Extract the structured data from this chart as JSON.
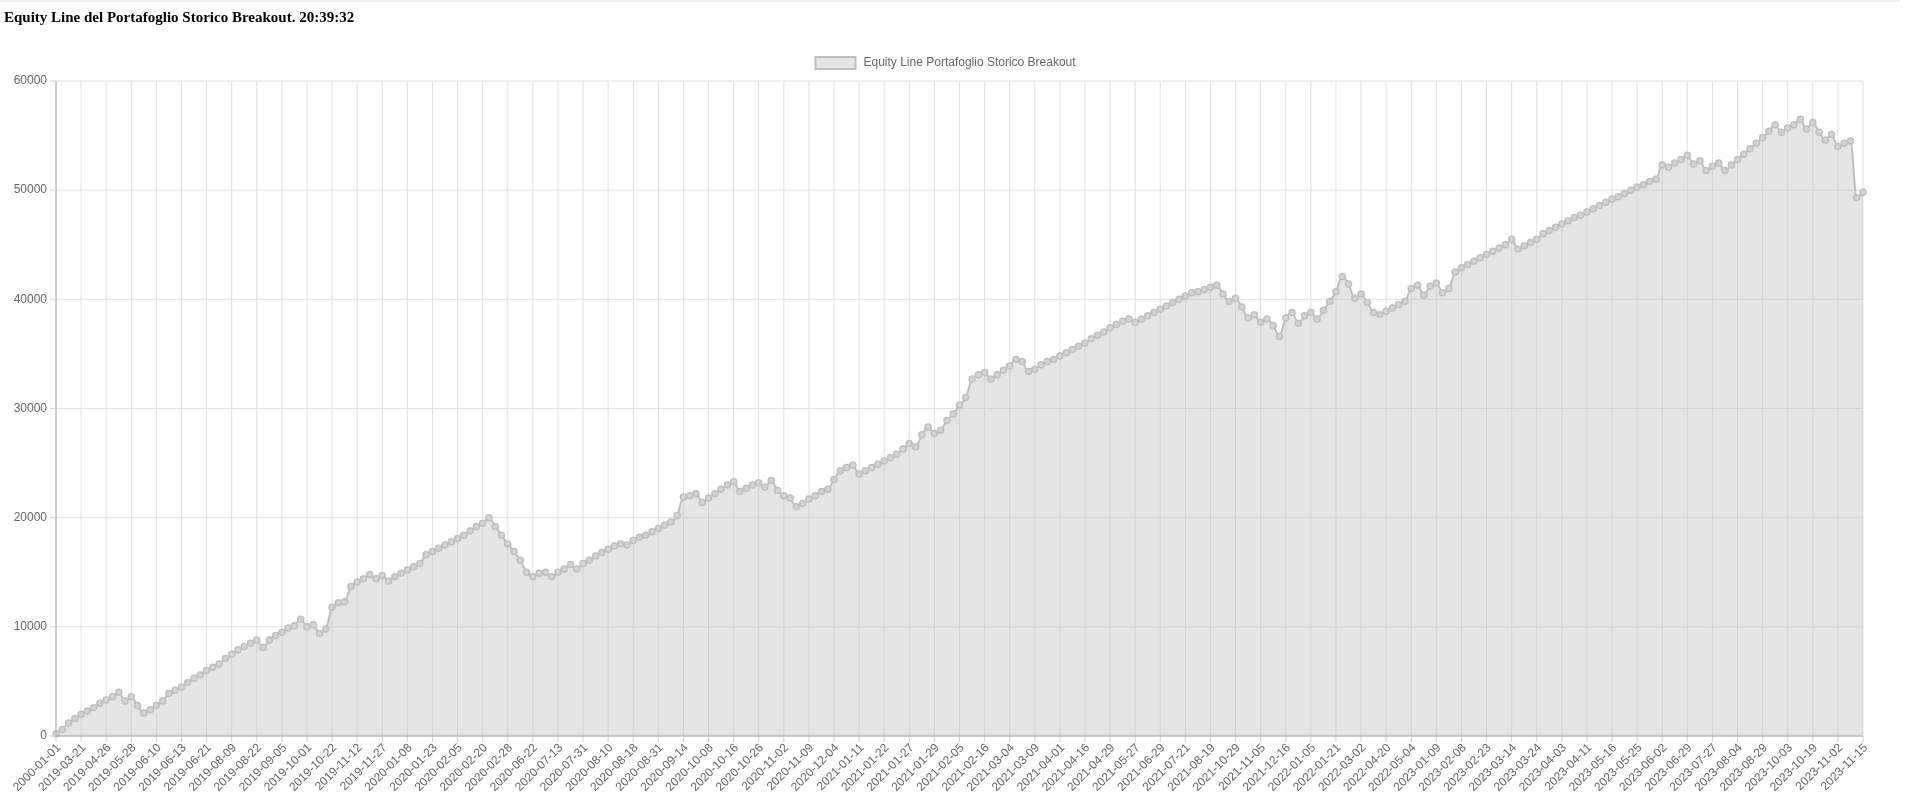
{
  "chart_data": {
    "type": "area",
    "title": "Equity Line del Portafoglio Storico Breakout. 20:39:32",
    "categories": [
      "2000-01-01",
      null,
      null,
      null,
      "2019-03-21",
      null,
      null,
      null,
      "2019-04-26",
      null,
      null,
      null,
      "2019-05-28",
      null,
      null,
      null,
      "2019-06-10",
      null,
      null,
      null,
      "2019-06-13",
      null,
      null,
      null,
      "2019-06-21",
      null,
      null,
      null,
      "2019-08-09",
      null,
      null,
      null,
      "2019-08-22",
      null,
      null,
      null,
      "2019-09-05",
      null,
      null,
      null,
      "2019-10-01",
      null,
      null,
      null,
      "2019-10-22",
      null,
      null,
      null,
      "2019-11-12",
      null,
      null,
      null,
      "2019-11-27",
      null,
      null,
      null,
      "2020-01-08",
      null,
      null,
      null,
      "2020-01-23",
      null,
      null,
      null,
      "2020-02-05",
      null,
      null,
      null,
      "2020-02-20",
      null,
      null,
      null,
      "2020-02-28",
      null,
      null,
      null,
      "2020-06-22",
      null,
      null,
      null,
      "2020-07-13",
      null,
      null,
      null,
      "2020-07-31",
      null,
      null,
      null,
      "2020-08-10",
      null,
      null,
      null,
      "2020-08-18",
      null,
      null,
      null,
      "2020-08-31",
      null,
      null,
      null,
      "2020-09-14",
      null,
      null,
      null,
      "2020-10-08",
      null,
      null,
      null,
      "2020-10-16",
      null,
      null,
      null,
      "2020-10-26",
      null,
      null,
      null,
      "2020-11-02",
      null,
      null,
      null,
      "2020-11-09",
      null,
      null,
      null,
      "2020-12-04",
      null,
      null,
      null,
      "2021-01-11",
      null,
      null,
      null,
      "2021-01-22",
      null,
      null,
      null,
      "2021-01-27",
      null,
      null,
      null,
      "2021-01-29",
      null,
      null,
      null,
      "2021-02-05",
      null,
      null,
      null,
      "2021-02-16",
      null,
      null,
      null,
      "2021-03-04",
      null,
      null,
      null,
      "2021-03-09",
      null,
      null,
      null,
      "2021-04-01",
      null,
      null,
      null,
      "2021-04-16",
      null,
      null,
      null,
      "2021-04-29",
      null,
      null,
      null,
      "2021-05-27",
      null,
      null,
      null,
      "2021-06-29",
      null,
      null,
      null,
      "2021-07-21",
      null,
      null,
      null,
      "2021-08-19",
      null,
      null,
      null,
      "2021-10-29",
      null,
      null,
      null,
      "2021-11-05",
      null,
      null,
      null,
      "2021-12-16",
      null,
      null,
      null,
      "2022-01-05",
      null,
      null,
      null,
      "2022-01-21",
      null,
      null,
      null,
      "2022-03-02",
      null,
      null,
      null,
      "2022-04-20",
      null,
      null,
      null,
      "2022-05-04",
      null,
      null,
      null,
      "2023-01-09",
      null,
      null,
      null,
      "2023-02-08",
      null,
      null,
      null,
      "2023-02-23",
      null,
      null,
      null,
      "2023-03-14",
      null,
      null,
      null,
      "2023-03-24",
      null,
      null,
      null,
      "2023-04-03",
      null,
      null,
      null,
      "2023-04-11",
      null,
      null,
      null,
      "2023-05-16",
      null,
      null,
      null,
      "2023-05-25",
      null,
      null,
      null,
      "2023-06-02",
      null,
      null,
      null,
      "2023-06-29",
      null,
      null,
      null,
      "2023-07-27",
      null,
      null,
      null,
      "2023-08-04",
      null,
      null,
      null,
      "2023-08-29",
      null,
      null,
      null,
      "2023-10-03",
      null,
      null,
      null,
      "2023-10-19",
      null,
      null,
      null,
      "2023-11-02",
      null,
      null,
      null,
      "2023-11-15"
    ],
    "series": [
      {
        "name": "Equity Line Portafoglio Storico Breakout",
        "color": "#bfbfbf",
        "values": [
          200,
          600,
          1200,
          1600,
          2000,
          2300,
          2600,
          3000,
          3300,
          3600,
          4000,
          3200,
          3600,
          2800,
          2100,
          2400,
          2800,
          3200,
          3900,
          4200,
          4500,
          4900,
          5300,
          5600,
          6000,
          6300,
          6600,
          7100,
          7500,
          7900,
          8200,
          8500,
          8800,
          8100,
          8800,
          9200,
          9500,
          9900,
          10100,
          10700,
          10000,
          10200,
          9400,
          9800,
          11800,
          12200,
          12300,
          13700,
          14100,
          14400,
          14800,
          14400,
          14700,
          14200,
          14600,
          14900,
          15200,
          15500,
          15800,
          16600,
          16900,
          17200,
          17500,
          17800,
          18100,
          18400,
          18800,
          19200,
          19500,
          20000,
          19200,
          18400,
          17600,
          16900,
          16100,
          15000,
          14600,
          14900,
          15000,
          14600,
          15000,
          15300,
          15700,
          15300,
          15800,
          16100,
          16500,
          16800,
          17100,
          17400,
          17600,
          17500,
          17900,
          18200,
          18400,
          18700,
          19000,
          19300,
          19600,
          20200,
          21900,
          22000,
          22200,
          21400,
          21800,
          22200,
          22600,
          23000,
          23300,
          22400,
          22700,
          23000,
          23200,
          22800,
          23400,
          22500,
          22000,
          21800,
          21000,
          21300,
          21700,
          22000,
          22400,
          22600,
          23500,
          24300,
          24600,
          24800,
          24000,
          24300,
          24600,
          24900,
          25200,
          25500,
          25800,
          26300,
          26800,
          26500,
          27600,
          28300,
          27700,
          28000,
          28900,
          29500,
          30300,
          31000,
          32700,
          33100,
          33300,
          32700,
          33100,
          33500,
          33900,
          34500,
          34300,
          33400,
          33600,
          34000,
          34300,
          34500,
          34800,
          35100,
          35400,
          35700,
          36000,
          36400,
          36700,
          37000,
          37400,
          37700,
          38000,
          38200,
          37900,
          38200,
          38500,
          38800,
          39100,
          39400,
          39700,
          40000,
          40300,
          40600,
          40700,
          40900,
          41100,
          41300,
          40500,
          39800,
          40100,
          39300,
          38300,
          38600,
          37900,
          38200,
          37600,
          36600,
          38300,
          38800,
          37800,
          38500,
          38800,
          38200,
          39000,
          39800,
          40700,
          42100,
          41400,
          40100,
          40500,
          39700,
          38800,
          38600,
          38900,
          39200,
          39500,
          39800,
          41000,
          41300,
          40400,
          41200,
          41500,
          40600,
          41000,
          42500,
          42900,
          43200,
          43500,
          43800,
          44100,
          44400,
          44700,
          45000,
          45500,
          44600,
          44900,
          45200,
          45500,
          46000,
          46300,
          46600,
          46900,
          47200,
          47500,
          47700,
          48000,
          48300,
          48600,
          48900,
          49200,
          49400,
          49700,
          50000,
          50300,
          50500,
          50800,
          51000,
          52300,
          52100,
          52500,
          52800,
          53200,
          52400,
          52700,
          51800,
          52200,
          52500,
          51800,
          52300,
          52800,
          53300,
          53800,
          54300,
          54800,
          55400,
          56000,
          55300,
          55700,
          56000,
          56500,
          55600,
          56200,
          55300,
          54600,
          55100,
          54000,
          54300,
          54500,
          49300,
          49800
        ]
      }
    ],
    "ylim": [
      0,
      60000
    ],
    "yticks": [
      0,
      10000,
      20000,
      30000,
      40000,
      50000,
      60000
    ],
    "grid": true,
    "legend": "top",
    "marker": "circle"
  }
}
